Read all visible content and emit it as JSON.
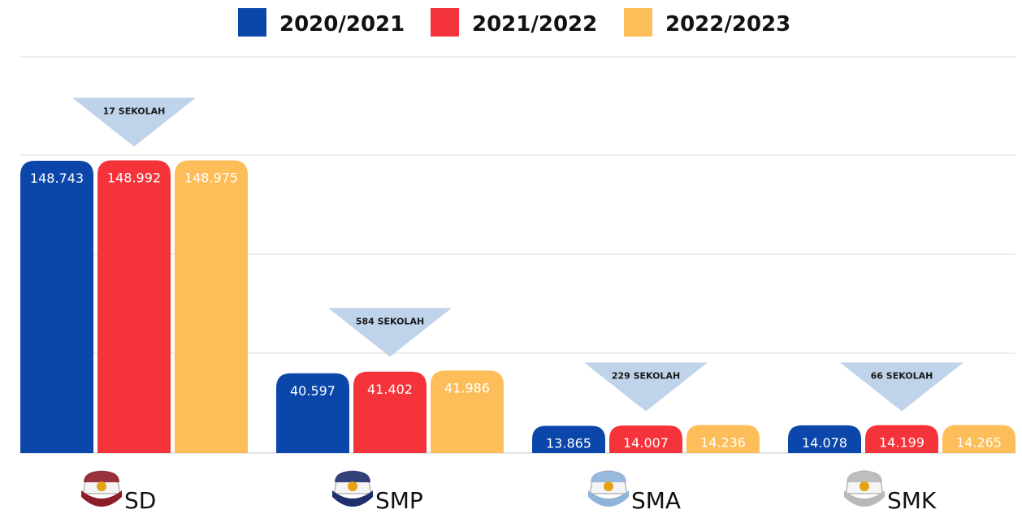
{
  "chart_data": {
    "type": "bar",
    "categories": [
      "SD",
      "SMP",
      "SMA",
      "SMK"
    ],
    "series": [
      {
        "name": "2020/2021",
        "color": "#0B47AA",
        "values": [
          148743,
          40597,
          13865,
          14078
        ],
        "labels": [
          "148.743",
          "40.597",
          "13.865",
          "14.078"
        ]
      },
      {
        "name": "2021/2022",
        "color": "#F5333A",
        "values": [
          148992,
          41402,
          14007,
          14199
        ],
        "labels": [
          "148.992",
          "41.402",
          "14.007",
          "14.199"
        ]
      },
      {
        "name": "2022/2023",
        "color": "#FDBE5A",
        "values": [
          148975,
          41986,
          14236,
          14265
        ],
        "labels": [
          "148.975",
          "41.986",
          "14.236",
          "14.265"
        ]
      }
    ],
    "annotations": [
      "17 SEKOLAH",
      "584 SEKOLAH",
      "229 SEKOLAH",
      "66 SEKOLAH"
    ],
    "category_icons": [
      "school-cap-icon",
      "school-cap-icon",
      "school-cap-icon",
      "school-cap-icon"
    ],
    "cap_colors": [
      "#8E1D2A",
      "#1E2F6B",
      "#8FB4D9",
      "#B8B8B8"
    ],
    "ylim": [
      0,
      150000
    ],
    "grid": true,
    "legend_position": "top",
    "annotation_color": "#BFD3EA"
  }
}
